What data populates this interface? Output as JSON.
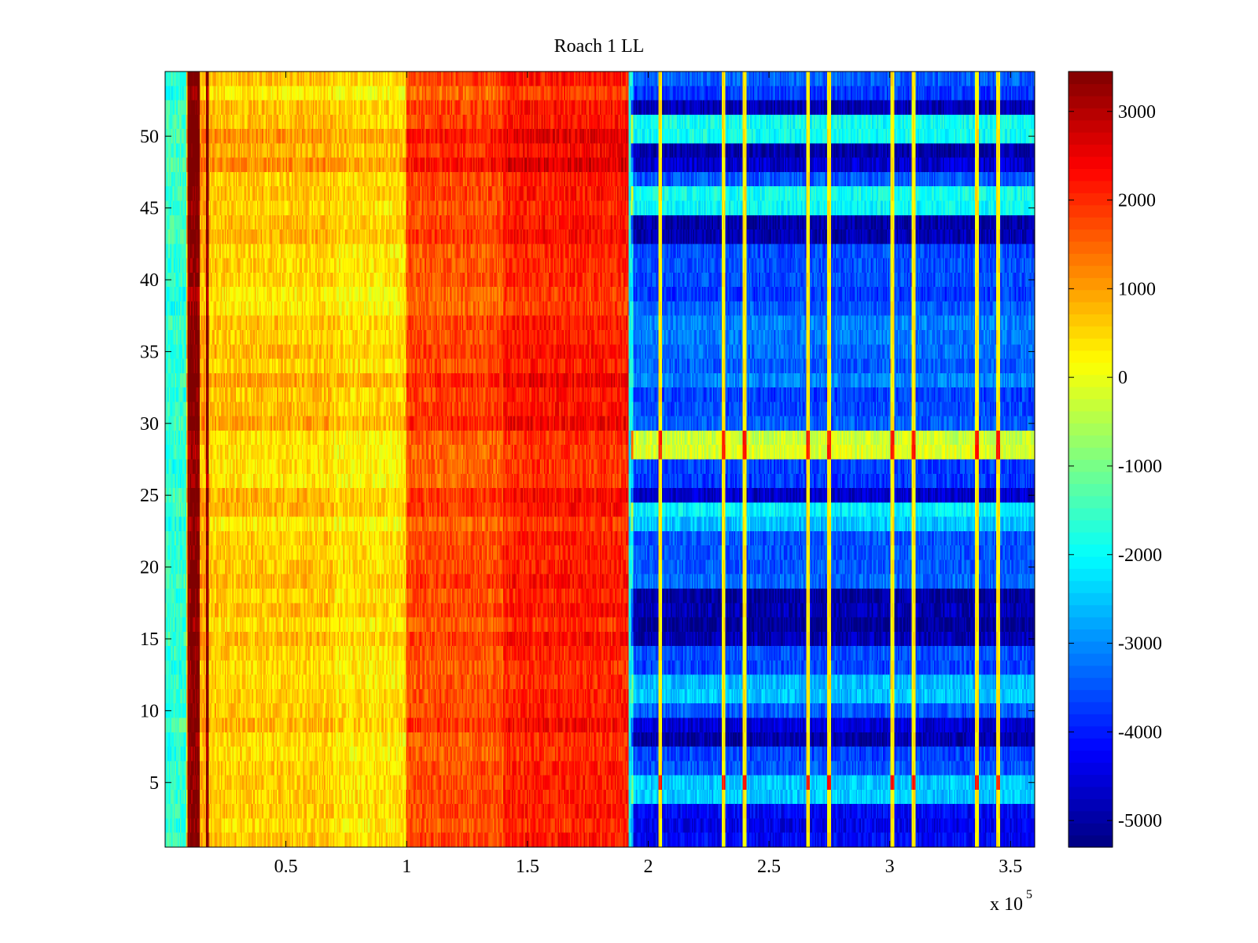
{
  "chart_data": {
    "type": "heatmap",
    "title": "Roach 1 LL",
    "xlabel": "",
    "ylabel": "",
    "x_exponent_label": "x 10",
    "x_exponent_power": "5",
    "xlim": [
      0,
      3.6
    ],
    "ylim": [
      0.5,
      54.5
    ],
    "x_ticks": [
      {
        "value": 0.5,
        "label": "0.5"
      },
      {
        "value": 1,
        "label": "1"
      },
      {
        "value": 1.5,
        "label": "1.5"
      },
      {
        "value": 2,
        "label": "2"
      },
      {
        "value": 2.5,
        "label": "2.5"
      },
      {
        "value": 3,
        "label": "3"
      },
      {
        "value": 3.5,
        "label": "3.5"
      }
    ],
    "y_ticks": [
      {
        "value": 5,
        "label": "5"
      },
      {
        "value": 10,
        "label": "10"
      },
      {
        "value": 15,
        "label": "15"
      },
      {
        "value": 20,
        "label": "20"
      },
      {
        "value": 25,
        "label": "25"
      },
      {
        "value": 30,
        "label": "30"
      },
      {
        "value": 35,
        "label": "35"
      },
      {
        "value": 40,
        "label": "40"
      },
      {
        "value": 45,
        "label": "45"
      },
      {
        "value": 50,
        "label": "50"
      }
    ],
    "rows": 54,
    "colormap": "jet",
    "colorbar": {
      "min": -5300,
      "max": 3450,
      "ticks": [
        {
          "value": 3000,
          "label": "3000"
        },
        {
          "value": 2000,
          "label": "2000"
        },
        {
          "value": 1000,
          "label": "1000"
        },
        {
          "value": 0,
          "label": "0"
        },
        {
          "value": -1000,
          "label": "-1000"
        },
        {
          "value": -2000,
          "label": "-2000"
        },
        {
          "value": -3000,
          "label": "-3000"
        },
        {
          "value": -4000,
          "label": "-4000"
        },
        {
          "value": -5000,
          "label": "-5000"
        }
      ]
    },
    "column_segments": [
      {
        "x_start": 0,
        "x_end": 0.09,
        "mean": -1600
      },
      {
        "x_start": 0.09,
        "x_end": 0.095,
        "mean": 600
      },
      {
        "x_start": 0.095,
        "x_end": 0.145,
        "mean": 3400
      },
      {
        "x_start": 0.145,
        "x_end": 0.17,
        "mean": 900
      },
      {
        "x_start": 0.17,
        "x_end": 0.18,
        "mean": 3400
      },
      {
        "x_start": 0.18,
        "x_end": 0.7,
        "mean": 600
      },
      {
        "x_start": 0.7,
        "x_end": 1.0,
        "mean": 400
      },
      {
        "x_start": 1.0,
        "x_end": 1.4,
        "mean": 1700
      },
      {
        "x_start": 1.4,
        "x_end": 1.92,
        "mean": 2100
      },
      {
        "x_start": 1.92,
        "x_end": 1.94,
        "mean": -2000
      },
      {
        "x_start": 1.94,
        "x_end": 3.6,
        "mean": -3500
      }
    ],
    "row_offsets_high": [
      {
        "rows": [
          48,
          49,
          50
        ],
        "offset": 400
      },
      {
        "rows": [
          29,
          30,
          31,
          32,
          33,
          34,
          35
        ],
        "offset": 250
      },
      {
        "rows": [
          28,
          29
        ],
        "offset": -300
      }
    ],
    "row_offsets_low": [
      {
        "rows": [
          52
        ],
        "offset": -1500
      },
      {
        "rows": [
          48,
          49
        ],
        "offset": -1300
      },
      {
        "rows": [
          43,
          44
        ],
        "offset": -1600
      },
      {
        "rows": [
          33,
          34,
          35,
          36,
          37,
          38
        ],
        "offset": 300
      },
      {
        "rows": [
          28,
          29
        ],
        "offset": 3300
      },
      {
        "rows": [
          25
        ],
        "offset": -1400
      },
      {
        "rows": [
          23,
          24
        ],
        "offset": 1200
      },
      {
        "rows": [
          15,
          16,
          17,
          18
        ],
        "offset": -1500
      },
      {
        "rows": [
          8,
          9
        ],
        "offset": -1300
      },
      {
        "rows": [
          4,
          5
        ],
        "offset": 1000
      },
      {
        "rows": [
          50,
          51
        ],
        "offset": 1500
      },
      {
        "rows": [
          45,
          46
        ],
        "offset": 1500
      },
      {
        "rows": [
          11,
          12
        ],
        "offset": 1000
      },
      {
        "rows": [
          1,
          2,
          3
        ],
        "offset": -800
      }
    ],
    "vertical_stripes_x": [
      2.05,
      2.31,
      2.4,
      2.66,
      2.75,
      3.01,
      3.1,
      3.36,
      3.45
    ],
    "vertical_stripe_value": 300
  }
}
